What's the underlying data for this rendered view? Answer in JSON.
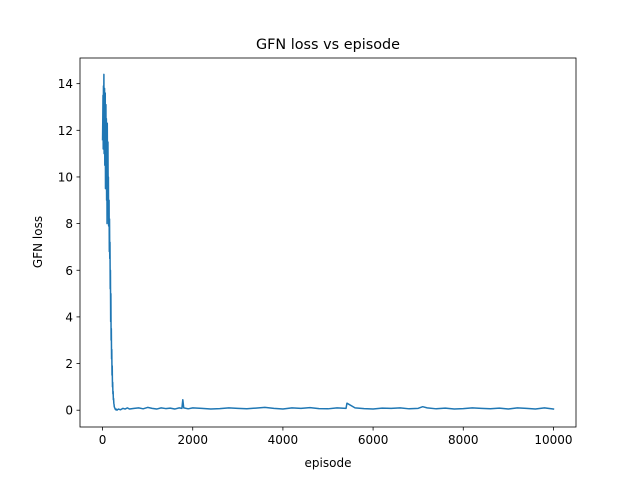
{
  "chart_data": {
    "type": "line",
    "title": "GFN loss vs episode",
    "xlabel": "episode",
    "ylabel": "GFN loss",
    "xlim": [
      -500,
      10500
    ],
    "ylim": [
      -0.72,
      15.1
    ],
    "x_ticks": [
      {
        "value": 0,
        "label": "0"
      },
      {
        "value": 2000,
        "label": "2000"
      },
      {
        "value": 4000,
        "label": "4000"
      },
      {
        "value": 6000,
        "label": "6000"
      },
      {
        "value": 8000,
        "label": "8000"
      },
      {
        "value": 10000,
        "label": "10000"
      }
    ],
    "y_ticks": [
      {
        "value": 0,
        "label": "0"
      },
      {
        "value": 2,
        "label": "2"
      },
      {
        "value": 4,
        "label": "4"
      },
      {
        "value": 6,
        "label": "6"
      },
      {
        "value": 8,
        "label": "8"
      },
      {
        "value": 10,
        "label": "10"
      },
      {
        "value": 12,
        "label": "12"
      },
      {
        "value": 14,
        "label": "14"
      }
    ],
    "grid": false,
    "legend": "none",
    "series": [
      {
        "color": "#1f77b4",
        "x": [
          0,
          5,
          10,
          15,
          20,
          25,
          30,
          35,
          40,
          45,
          50,
          55,
          60,
          65,
          70,
          75,
          80,
          85,
          90,
          95,
          100,
          105,
          110,
          115,
          120,
          125,
          130,
          135,
          140,
          145,
          150,
          155,
          160,
          165,
          170,
          175,
          180,
          185,
          190,
          195,
          200,
          205,
          210,
          215,
          220,
          225,
          230,
          235,
          240,
          245,
          250,
          255,
          260,
          270,
          280,
          290,
          300,
          320,
          350,
          400,
          450,
          500,
          550,
          600,
          700,
          800,
          900,
          1000,
          1100,
          1200,
          1300,
          1400,
          1500,
          1600,
          1700,
          1760,
          1780,
          1800,
          1900,
          2000,
          2200,
          2400,
          2600,
          2800,
          3000,
          3200,
          3400,
          3600,
          3800,
          4000,
          4200,
          4400,
          4600,
          4800,
          5000,
          5200,
          5400,
          5420,
          5600,
          5800,
          6000,
          6200,
          6400,
          6600,
          6800,
          7000,
          7100,
          7200,
          7400,
          7600,
          7800,
          8000,
          8200,
          8400,
          8600,
          8800,
          9000,
          9200,
          9400,
          9600,
          9800,
          10000
        ],
        "y": [
          11.6,
          12.4,
          13.5,
          11.2,
          13.9,
          12.8,
          14.4,
          11.0,
          13.2,
          13.8,
          10.5,
          12.9,
          13.6,
          9.5,
          12.0,
          13.1,
          10.6,
          12.5,
          9.0,
          11.8,
          8.0,
          12.3,
          10.2,
          8.5,
          11.5,
          9.2,
          10.0,
          7.9,
          8.6,
          9.0,
          6.8,
          8.2,
          6.5,
          7.2,
          5.2,
          6.0,
          3.8,
          5.0,
          3.0,
          3.5,
          2.2,
          2.6,
          1.5,
          1.9,
          1.0,
          1.2,
          0.7,
          0.8,
          0.45,
          0.5,
          0.3,
          0.25,
          0.15,
          0.1,
          0.05,
          0.02,
          0.05,
          0.0,
          0.05,
          0.02,
          0.08,
          0.05,
          0.1,
          0.05,
          0.08,
          0.1,
          0.06,
          0.12,
          0.08,
          0.05,
          0.1,
          0.07,
          0.09,
          0.05,
          0.1,
          0.08,
          0.45,
          0.1,
          0.06,
          0.1,
          0.08,
          0.05,
          0.07,
          0.1,
          0.08,
          0.06,
          0.09,
          0.12,
          0.08,
          0.05,
          0.1,
          0.08,
          0.11,
          0.07,
          0.06,
          0.1,
          0.08,
          0.3,
          0.1,
          0.07,
          0.05,
          0.09,
          0.08,
          0.1,
          0.06,
          0.08,
          0.15,
          0.1,
          0.06,
          0.09,
          0.05,
          0.07,
          0.1,
          0.08,
          0.06,
          0.09,
          0.05,
          0.1,
          0.08,
          0.05,
          0.1,
          0.05
        ]
      }
    ]
  }
}
